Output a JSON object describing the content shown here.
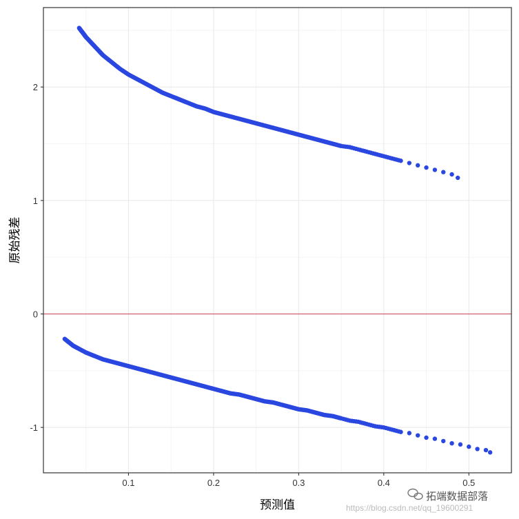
{
  "chart_data": {
    "type": "scatter",
    "xlabel": "预测值",
    "ylabel": "原始残差",
    "xlim": [
      0,
      0.55
    ],
    "ylim": [
      -1.4,
      2.7
    ],
    "x_ticks": [
      0.1,
      0.2,
      0.3,
      0.4,
      0.5
    ],
    "x_tick_labels": [
      "0.1",
      "0.2",
      "0.3",
      "0.4",
      "0.5"
    ],
    "y_ticks": [
      -1,
      0,
      1,
      2
    ],
    "y_tick_labels": [
      "-1",
      "0",
      "1",
      "2"
    ],
    "grid": true,
    "reference_line": {
      "y": 0,
      "color": "#d06070"
    },
    "point_color": "#2a47e0",
    "series": [
      {
        "x": [
          0.042,
          0.045,
          0.048,
          0.05,
          0.055,
          0.06,
          0.065,
          0.07,
          0.08,
          0.09,
          0.1,
          0.11,
          0.12,
          0.13,
          0.14,
          0.15,
          0.16,
          0.17,
          0.18,
          0.19,
          0.2,
          0.21,
          0.22,
          0.23,
          0.24,
          0.25,
          0.26,
          0.27,
          0.28,
          0.29,
          0.3,
          0.31,
          0.32,
          0.33,
          0.34,
          0.35,
          0.36,
          0.37,
          0.38,
          0.39,
          0.4,
          0.41,
          0.42,
          0.43,
          0.44,
          0.45,
          0.46,
          0.47,
          0.48,
          0.487
        ],
        "y": [
          2.52,
          2.49,
          2.46,
          2.44,
          2.4,
          2.36,
          2.32,
          2.28,
          2.22,
          2.16,
          2.11,
          2.07,
          2.03,
          1.99,
          1.95,
          1.92,
          1.89,
          1.86,
          1.83,
          1.81,
          1.78,
          1.76,
          1.74,
          1.72,
          1.7,
          1.68,
          1.66,
          1.64,
          1.62,
          1.6,
          1.58,
          1.56,
          1.54,
          1.52,
          1.5,
          1.48,
          1.47,
          1.45,
          1.43,
          1.41,
          1.39,
          1.37,
          1.35,
          1.33,
          1.31,
          1.29,
          1.27,
          1.25,
          1.23,
          1.2
        ]
      },
      {
        "x": [
          0.025,
          0.03,
          0.035,
          0.04,
          0.05,
          0.06,
          0.07,
          0.08,
          0.09,
          0.1,
          0.11,
          0.12,
          0.13,
          0.14,
          0.15,
          0.16,
          0.17,
          0.18,
          0.19,
          0.2,
          0.21,
          0.22,
          0.23,
          0.24,
          0.25,
          0.26,
          0.27,
          0.28,
          0.29,
          0.3,
          0.31,
          0.32,
          0.33,
          0.34,
          0.35,
          0.36,
          0.37,
          0.38,
          0.39,
          0.4,
          0.41,
          0.42,
          0.43,
          0.44,
          0.45,
          0.46,
          0.47,
          0.48,
          0.49,
          0.5,
          0.51,
          0.52,
          0.525
        ],
        "y": [
          -0.22,
          -0.25,
          -0.28,
          -0.3,
          -0.34,
          -0.37,
          -0.4,
          -0.42,
          -0.44,
          -0.46,
          -0.48,
          -0.5,
          -0.52,
          -0.54,
          -0.56,
          -0.58,
          -0.6,
          -0.62,
          -0.64,
          -0.66,
          -0.68,
          -0.7,
          -0.71,
          -0.73,
          -0.75,
          -0.77,
          -0.78,
          -0.8,
          -0.82,
          -0.84,
          -0.85,
          -0.87,
          -0.89,
          -0.9,
          -0.92,
          -0.94,
          -0.95,
          -0.97,
          -0.99,
          -1.0,
          -1.02,
          -1.04,
          -1.05,
          -1.07,
          -1.09,
          -1.1,
          -1.12,
          -1.14,
          -1.15,
          -1.17,
          -1.19,
          -1.2,
          -1.22
        ]
      }
    ]
  },
  "watermark": {
    "label": "拓端数据部落",
    "url": "https://blog.csdn.net/qq_19600291",
    "icon": "wechat-icon"
  }
}
